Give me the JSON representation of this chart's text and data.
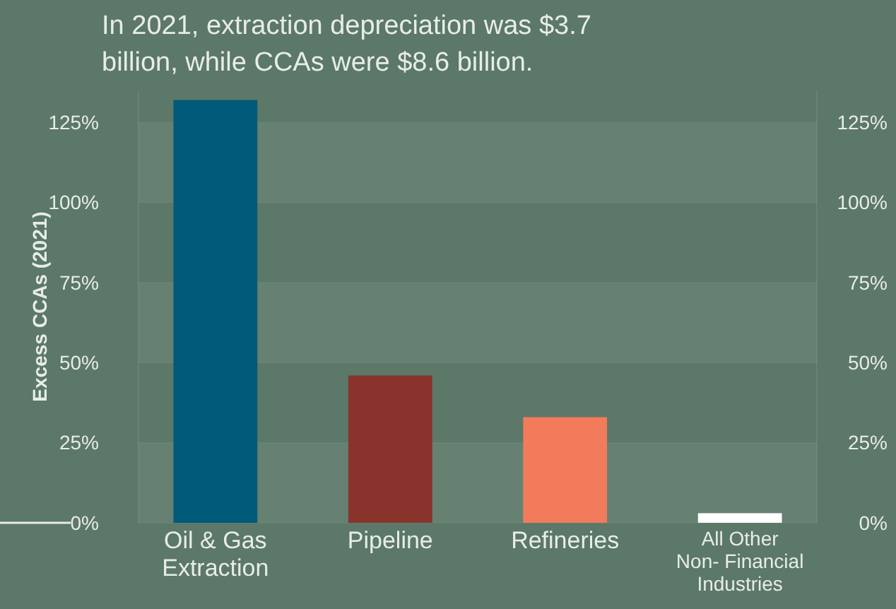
{
  "chart_data": {
    "type": "bar",
    "title": "In 2021, extraction depreciation was $3.7 billion, while CCAs were $8.6 billion.",
    "ylabel": "Excess CCAs (2021)",
    "categories": [
      "Oil & Gas Extraction",
      "Pipeline",
      "Refineries",
      "All Other Non- Financial Industries"
    ],
    "values": [
      132,
      46,
      33,
      3
    ],
    "colors": [
      "#005a7a",
      "#8a332d",
      "#f27b5c",
      "#ffffff"
    ],
    "ylim": [
      0,
      135
    ],
    "yticks": [
      {
        "value": 0,
        "label": "0%"
      },
      {
        "value": 25,
        "label": "25%"
      },
      {
        "value": 50,
        "label": "50%"
      },
      {
        "value": 75,
        "label": "75%"
      },
      {
        "value": 100,
        "label": "100%"
      },
      {
        "value": 125,
        "label": "125%"
      }
    ],
    "y2lim": [
      0,
      135
    ],
    "y2ticks": [
      {
        "value": 0,
        "label": "0%"
      },
      {
        "value": 25,
        "label": "25%"
      },
      {
        "value": 50,
        "label": "50%"
      },
      {
        "value": 75,
        "label": "75%"
      },
      {
        "value": 100,
        "label": "100%"
      },
      {
        "value": 125,
        "label": "125%"
      }
    ],
    "grid": "y"
  }
}
